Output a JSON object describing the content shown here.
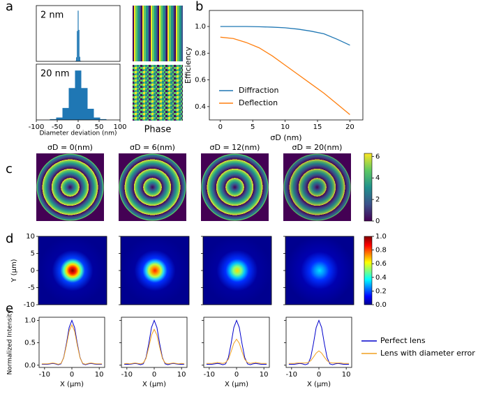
{
  "panel_labels": [
    "a",
    "b",
    "c",
    "d",
    "e"
  ],
  "phase_label": "Phase",
  "chart_data": [
    {
      "type": "histogram",
      "annotation": "2 nm",
      "color": "#1f77b4",
      "bins": [
        -7,
        -5,
        -3,
        -1,
        1,
        3,
        5,
        7
      ],
      "values": [
        1,
        8,
        60,
        100,
        62,
        9,
        1
      ],
      "xlim": [
        -100,
        100
      ],
      "ylim": [
        0,
        110
      ]
    },
    {
      "type": "histogram",
      "annotation": "20 nm",
      "color": "#1f77b4",
      "bins": [
        -67.5,
        -52.5,
        -37.5,
        -22.5,
        -7.5,
        7.5,
        22.5,
        37.5,
        52.5,
        67.5
      ],
      "values": [
        1,
        3,
        15,
        40,
        62,
        40,
        14,
        3,
        1
      ],
      "xlim": [
        -100,
        100
      ],
      "ylim": [
        0,
        70
      ],
      "xticks": [
        -100,
        -50,
        0,
        50,
        100
      ],
      "x_label": "Diameter deviation (nm)"
    },
    {
      "type": "line",
      "x_label": "σD (nm)",
      "y_label": "Efficiency",
      "x": [
        0,
        2,
        4,
        6,
        8,
        10,
        12,
        14,
        16,
        18,
        20
      ],
      "series": [
        {
          "name": "Diffraction",
          "color": "#1f77b4",
          "values": [
            1.0,
            1.0,
            1.0,
            0.998,
            0.995,
            0.99,
            0.98,
            0.965,
            0.945,
            0.905,
            0.86
          ]
        },
        {
          "name": "Deflection",
          "color": "#ff7f0e",
          "values": [
            0.92,
            0.91,
            0.88,
            0.84,
            0.78,
            0.71,
            0.64,
            0.57,
            0.5,
            0.42,
            0.34
          ]
        }
      ],
      "xlim": [
        -1.7,
        22
      ],
      "ylim": [
        0.3,
        1.12
      ],
      "xticks": [
        0,
        5,
        10,
        15,
        20
      ],
      "yticks": [
        0.4,
        0.6,
        0.8,
        {
          "value": 1,
          "label": "1.0"
        }
      ],
      "legend": "lower left"
    },
    {
      "type": "image",
      "titles": [
        "σD = 0(nm)",
        "σD = 6(nm)",
        "σD = 12(nm)",
        "σD = 20(nm)"
      ],
      "colorbar": {
        "colormap": "viridis",
        "ylim": [
          0,
          6.28
        ],
        "yticks": [
          0,
          2,
          4,
          6
        ]
      }
    },
    {
      "type": "image",
      "y_label": "Y (μm)",
      "ylim": [
        -10,
        10
      ],
      "yticks": [
        -10,
        -5,
        0,
        5,
        10
      ],
      "colorbar": {
        "colormap": "jet",
        "ylim": [
          0,
          1
        ],
        "yticks": [
          {
            "value": 0,
            "label": "0.0"
          },
          0.2,
          0.4,
          0.6,
          0.8,
          {
            "value": 1,
            "label": "1.0"
          }
        ]
      }
    },
    {
      "type": "line",
      "x_label": "X (μm)",
      "y_label": "Normalized Intensity",
      "x": [
        -11,
        -10,
        -9,
        -8,
        -7,
        -6,
        -5,
        -4,
        -3,
        -2,
        -1,
        0,
        1,
        2,
        3,
        4,
        5,
        6,
        7,
        8,
        9,
        10,
        11
      ],
      "xlim": [
        -12,
        12
      ],
      "ylim": [
        -0.05,
        1.07
      ],
      "xticks": [
        -10,
        0,
        10
      ],
      "yticks": [
        {
          "value": 0,
          "label": "0.0"
        },
        0.5,
        {
          "value": 1,
          "label": "1.0"
        }
      ],
      "series": [
        {
          "name": "Perfect lens",
          "color": "#0000cc",
          "values": [
            [
              0.02,
              0.02,
              0.02,
              0.03,
              0.04,
              0.03,
              0.01,
              0.03,
              0.17,
              0.48,
              0.84,
              1.0,
              0.84,
              0.48,
              0.17,
              0.03,
              0.01,
              0.03,
              0.04,
              0.03,
              0.02,
              0.02,
              0.02
            ],
            [
              0.02,
              0.02,
              0.02,
              0.03,
              0.04,
              0.03,
              0.01,
              0.03,
              0.17,
              0.48,
              0.84,
              1.0,
              0.84,
              0.48,
              0.17,
              0.03,
              0.01,
              0.03,
              0.04,
              0.03,
              0.02,
              0.02,
              0.02
            ],
            [
              0.02,
              0.02,
              0.02,
              0.03,
              0.04,
              0.03,
              0.01,
              0.03,
              0.17,
              0.48,
              0.84,
              1.0,
              0.84,
              0.48,
              0.17,
              0.03,
              0.01,
              0.03,
              0.04,
              0.03,
              0.02,
              0.02,
              0.02
            ],
            [
              0.02,
              0.02,
              0.02,
              0.03,
              0.04,
              0.03,
              0.01,
              0.03,
              0.17,
              0.48,
              0.84,
              1.0,
              0.84,
              0.48,
              0.17,
              0.03,
              0.01,
              0.03,
              0.04,
              0.03,
              0.02,
              0.02,
              0.02
            ]
          ]
        },
        {
          "name": "Lens with diameter error",
          "color": "#f0a020",
          "values": [
            [
              0.03,
              0.03,
              0.03,
              0.04,
              0.05,
              0.04,
              0.02,
              0.04,
              0.16,
              0.44,
              0.76,
              0.9,
              0.76,
              0.44,
              0.16,
              0.04,
              0.02,
              0.04,
              0.05,
              0.04,
              0.03,
              0.03,
              0.03
            ],
            [
              0.03,
              0.04,
              0.03,
              0.04,
              0.05,
              0.04,
              0.03,
              0.05,
              0.15,
              0.4,
              0.67,
              0.8,
              0.67,
              0.4,
              0.15,
              0.05,
              0.03,
              0.04,
              0.05,
              0.04,
              0.03,
              0.04,
              0.03
            ],
            [
              0.04,
              0.04,
              0.04,
              0.05,
              0.06,
              0.05,
              0.04,
              0.06,
              0.13,
              0.3,
              0.49,
              0.58,
              0.49,
              0.3,
              0.13,
              0.06,
              0.04,
              0.05,
              0.06,
              0.05,
              0.04,
              0.04,
              0.04
            ],
            [
              0.04,
              0.04,
              0.04,
              0.05,
              0.05,
              0.05,
              0.05,
              0.06,
              0.1,
              0.18,
              0.27,
              0.32,
              0.27,
              0.18,
              0.1,
              0.06,
              0.05,
              0.05,
              0.05,
              0.05,
              0.04,
              0.04,
              0.04
            ]
          ]
        }
      ]
    }
  ]
}
